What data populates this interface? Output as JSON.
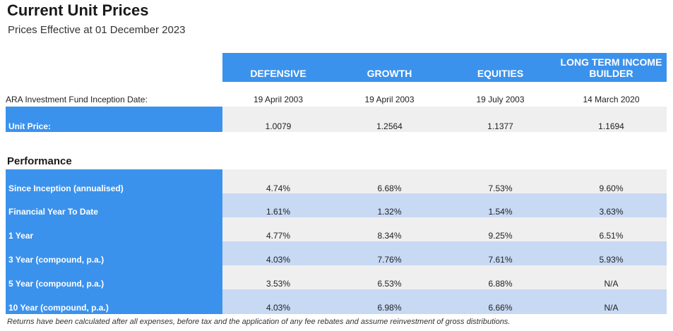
{
  "title": "Current Unit Prices",
  "subtitle": "Prices Effective at 01 December 2023",
  "columns": [
    "DEFENSIVE",
    "GROWTH",
    "EQUITIES",
    "LONG TERM INCOME BUILDER"
  ],
  "inception": {
    "label": "ARA Investment Fund Inception Date:",
    "values": [
      "19 April 2003",
      "19 April 2003",
      "19 July 2003",
      "14 March 2020"
    ]
  },
  "unit_price": {
    "label": "Unit Price:",
    "values": [
      "1.0079",
      "1.2564",
      "1.1377",
      "1.1694"
    ]
  },
  "performance_heading": "Performance",
  "performance": [
    {
      "label": "Since Inception (annualised)",
      "values": [
        "4.74%",
        "6.68%",
        "7.53%",
        "9.60%"
      ]
    },
    {
      "label": "Financial Year To Date",
      "values": [
        "1.61%",
        "1.32%",
        "1.54%",
        "3.63%"
      ]
    },
    {
      "label": "1 Year",
      "values": [
        "4.77%",
        "8.34%",
        "9.25%",
        "6.51%"
      ]
    },
    {
      "label": "3 Year (compound, p.a.)",
      "values": [
        "4.03%",
        "7.76%",
        "7.61%",
        "5.93%"
      ]
    },
    {
      "label": "5 Year (compound, p.a.)",
      "values": [
        "3.53%",
        "6.53%",
        "6.88%",
        "N/A"
      ]
    },
    {
      "label": "10 Year (compound, p.a.)",
      "values": [
        "4.03%",
        "6.98%",
        "6.66%",
        "N/A"
      ]
    }
  ],
  "footnote": "Returns have been calculated after all expenses, before tax and the application of any fee rebates and assume reinvestment of gross distributions."
}
